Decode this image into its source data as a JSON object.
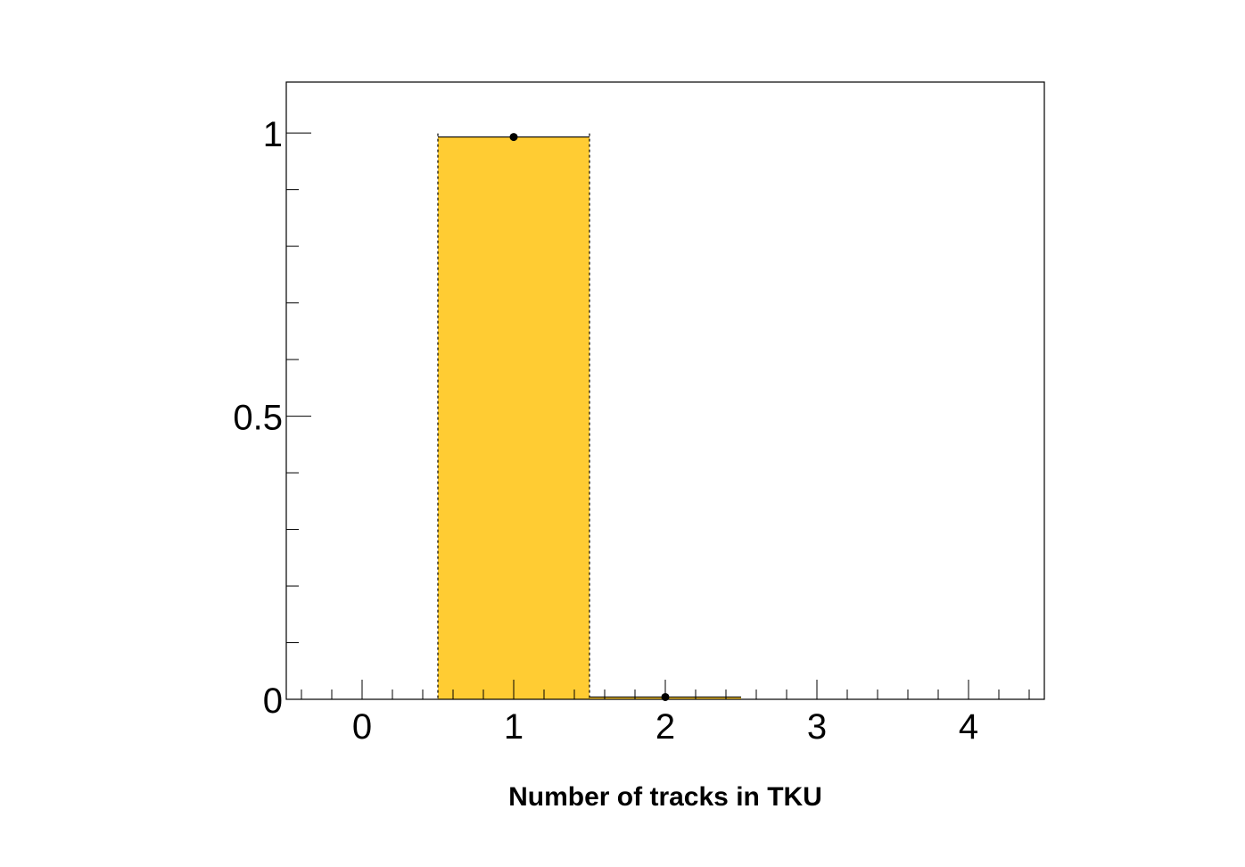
{
  "chart_data": {
    "type": "bar",
    "style": "histogram",
    "x_bins": [
      [
        -0.5,
        0.5
      ],
      [
        0.5,
        1.5
      ],
      [
        1.5,
        2.5
      ],
      [
        2.5,
        3.5
      ],
      [
        3.5,
        4.5
      ]
    ],
    "x_centers": [
      0,
      1,
      2,
      3,
      4
    ],
    "values": [
      0,
      0.993,
      0.004,
      0,
      0
    ],
    "errors": [
      0,
      0.005,
      0.001,
      0,
      0
    ],
    "xlabel": "Number of tracks in TKU",
    "ylabel": "",
    "title": "",
    "xlim": [
      -0.5,
      4.5
    ],
    "ylim": [
      0,
      1.09
    ],
    "x_ticks": [
      "0",
      "1",
      "2",
      "3",
      "4"
    ],
    "y_ticks": [
      "0",
      "0.5",
      "1"
    ],
    "y_tick_values": [
      0,
      0.5,
      1
    ],
    "grid": false,
    "legend": "none",
    "colors": {
      "fill": "#ffcc33",
      "outline": "#000000",
      "marker": "#000000"
    }
  }
}
